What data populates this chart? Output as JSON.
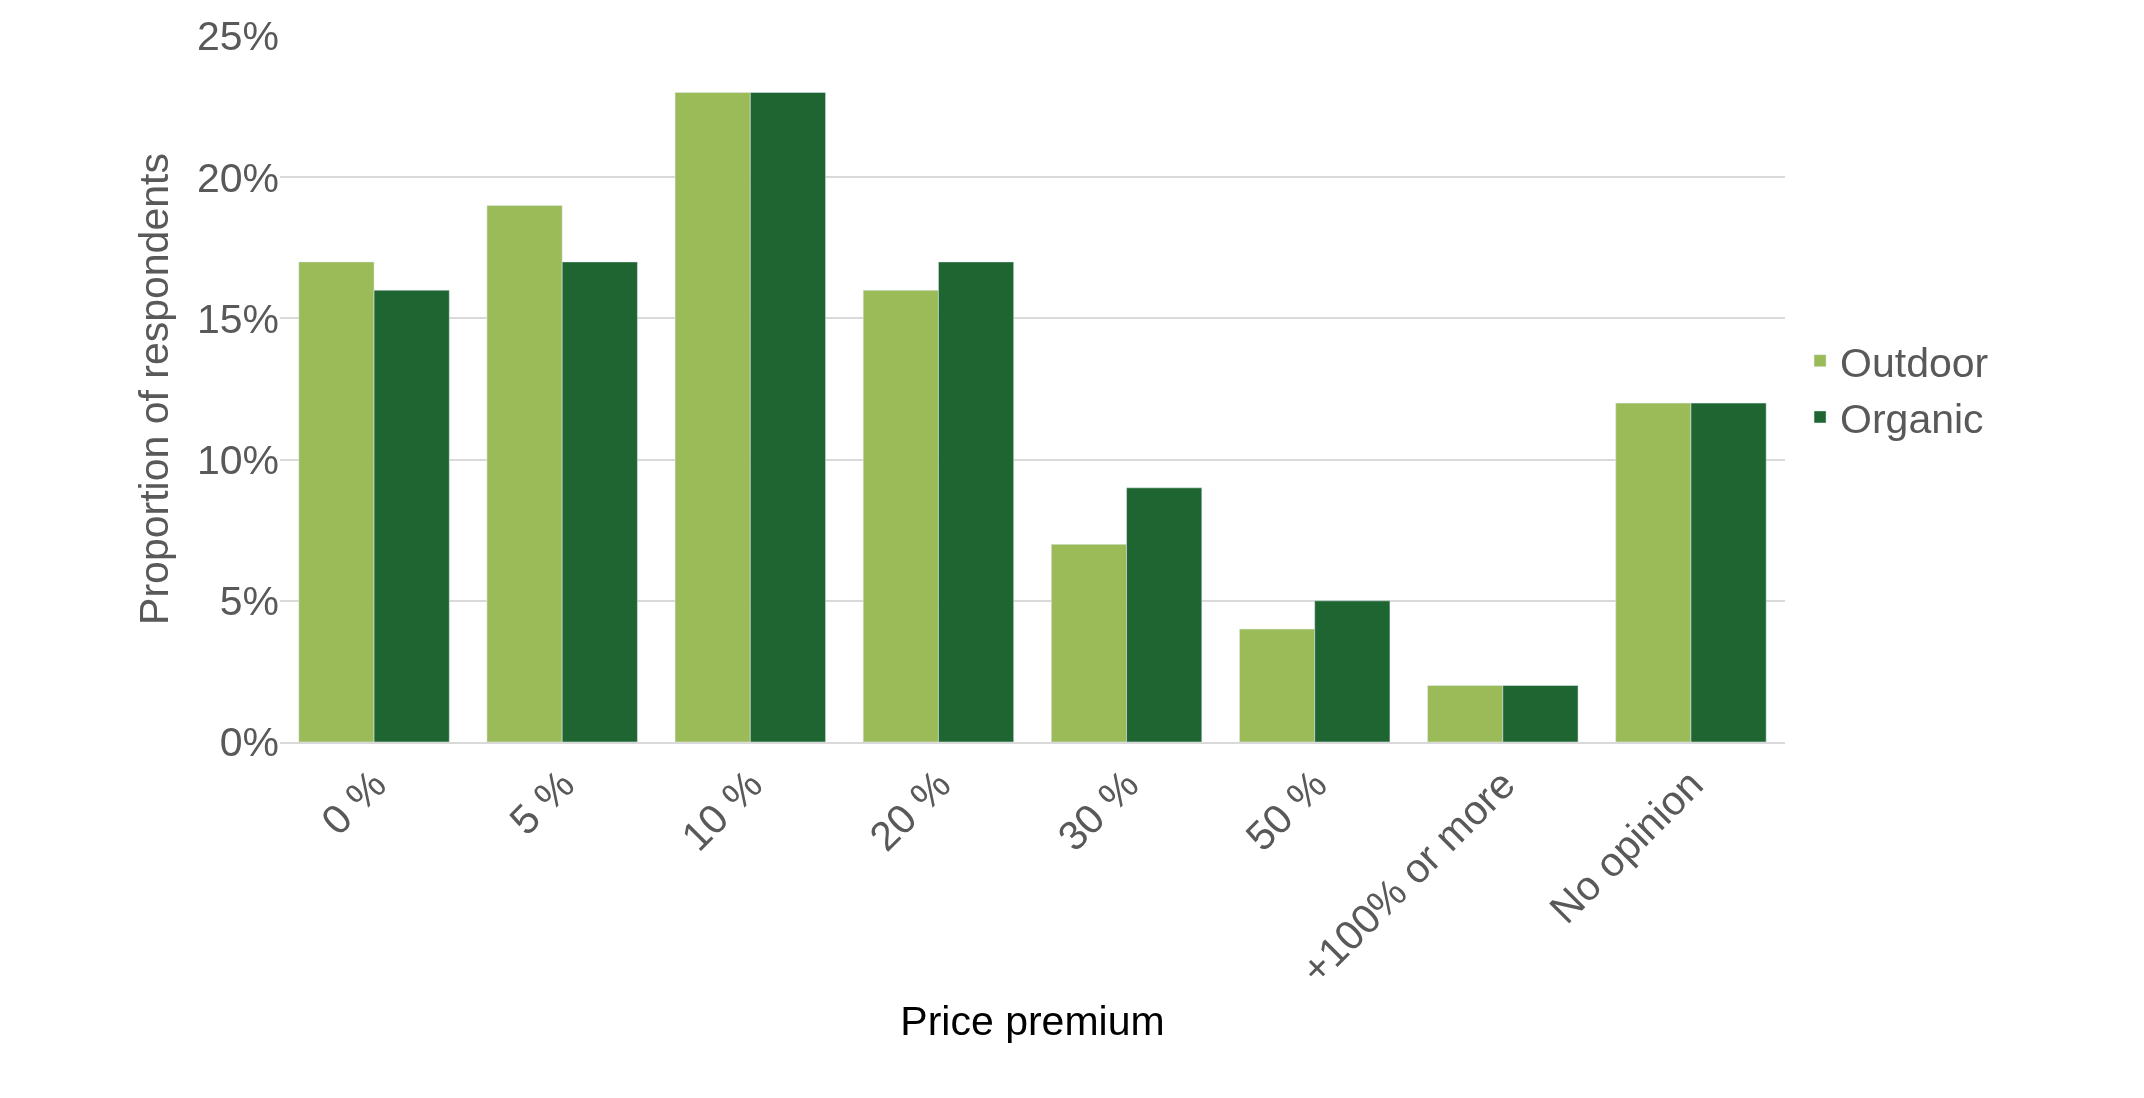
{
  "chart_data": {
    "type": "bar",
    "xlabel": "Price premium",
    "ylabel": "Proportion of respondents",
    "categories": [
      "0 %",
      "5 %",
      "10 %",
      "20 %",
      "30 %",
      "50 %",
      "+100% or more",
      "No opinion"
    ],
    "series": [
      {
        "name": "Outdoor",
        "color": "#9bbb59",
        "values": [
          17,
          19,
          23,
          16,
          7,
          4,
          2,
          12
        ]
      },
      {
        "name": "Organic",
        "color": "#1e6532",
        "values": [
          16,
          17,
          23,
          17,
          9,
          5,
          2,
          12
        ]
      }
    ],
    "ylim": [
      0,
      25
    ],
    "yticks": [
      {
        "value": 0,
        "label": "0%"
      },
      {
        "value": 5,
        "label": "5%"
      },
      {
        "value": 10,
        "label": "10%"
      },
      {
        "value": 15,
        "label": "15%"
      },
      {
        "value": 20,
        "label": "20%"
      },
      {
        "value": 25,
        "label": "25%"
      }
    ],
    "grid": "y",
    "legend": "right"
  }
}
